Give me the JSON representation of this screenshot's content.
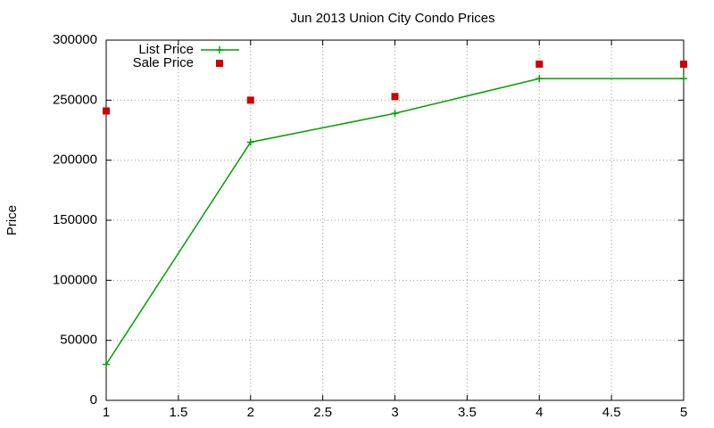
{
  "chart_data": {
    "type": "line",
    "title": "Jun 2013 Union City Condo Prices",
    "y_label": "Price",
    "x": [
      1,
      2,
      3,
      4,
      5
    ],
    "series": [
      {
        "name": "List Price",
        "color": "#00a000",
        "mode": "linespoints",
        "values": [
          30000,
          215000,
          239000,
          268000,
          268000
        ]
      },
      {
        "name": "Sale Price",
        "color": "#cc0000",
        "mode": "points",
        "values": [
          241000,
          250000,
          253000,
          280000,
          280000
        ]
      }
    ],
    "xlim": [
      1,
      5
    ],
    "xticks": [
      1,
      1.5,
      2,
      2.5,
      3,
      3.5,
      4,
      4.5,
      5
    ],
    "ylim": [
      0,
      300000
    ],
    "yticks": [
      0,
      50000,
      100000,
      150000,
      200000,
      250000,
      300000
    ],
    "grid": true,
    "legend": "top-left"
  }
}
